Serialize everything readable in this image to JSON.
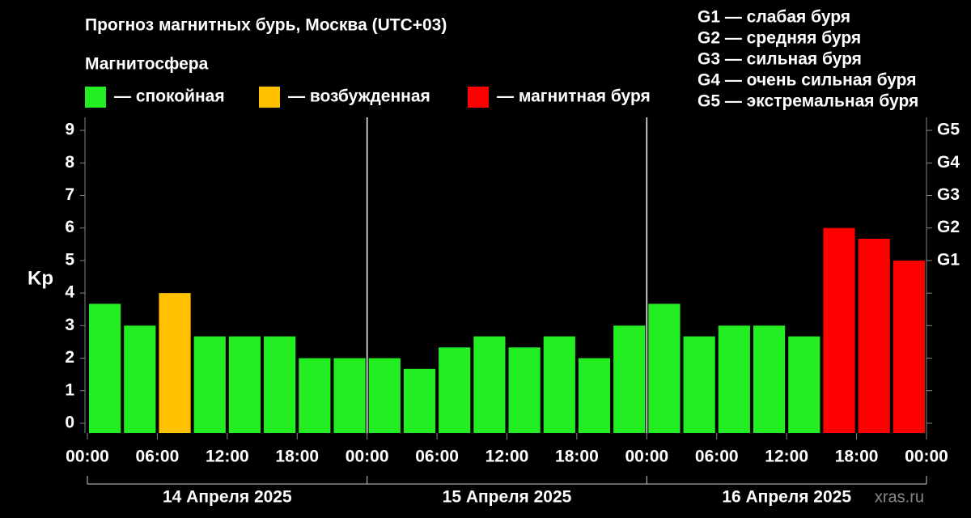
{
  "chart_data": {
    "type": "bar",
    "title": "Прогноз магнитных бурь, Москва (UTC+03)",
    "legend_title": "Магнитосфера",
    "legend": [
      {
        "label": "— спокойная",
        "color": "#22ee22"
      },
      {
        "label": "— возбужденная",
        "color": "#ffc000"
      },
      {
        "label": "— магнитная буря",
        "color": "#ff0000"
      }
    ],
    "storm_scale": [
      "G1 — слабая буря",
      "G2 — средняя буря",
      "G3 — сильная буря",
      "G4 — очень сильная буря",
      "G5 — экстремальная буря"
    ],
    "ylabel": "Kp",
    "values": [
      3.67,
      3,
      4,
      2.67,
      2.67,
      2.67,
      2,
      2,
      2,
      1.67,
      2.33,
      2.67,
      2.33,
      2.67,
      2,
      3,
      3.67,
      2.67,
      3,
      3,
      2.67,
      6,
      5.67,
      5
    ],
    "colors": [
      "#22ee22",
      "#22ee22",
      "#ffc000",
      "#22ee22",
      "#22ee22",
      "#22ee22",
      "#22ee22",
      "#22ee22",
      "#22ee22",
      "#22ee22",
      "#22ee22",
      "#22ee22",
      "#22ee22",
      "#22ee22",
      "#22ee22",
      "#22ee22",
      "#22ee22",
      "#22ee22",
      "#22ee22",
      "#22ee22",
      "#22ee22",
      "#ff0000",
      "#ff0000",
      "#ff0000"
    ],
    "ylim": [
      -0.3,
      9.4
    ],
    "yticks": [
      0,
      1,
      2,
      3,
      4,
      5,
      6,
      7,
      8,
      9
    ],
    "y2lim": [
      -0.3,
      9.4
    ],
    "y2ticks": [
      {
        "value": 5,
        "label": "G1"
      },
      {
        "value": 6,
        "label": "G2"
      },
      {
        "value": 7,
        "label": "G3"
      },
      {
        "value": 8,
        "label": "G4"
      },
      {
        "value": 9,
        "label": "G5"
      }
    ],
    "xlim": [
      0,
      72
    ],
    "xticks": [
      {
        "value": 0,
        "label": "00:00"
      },
      {
        "value": 6,
        "label": "06:00"
      },
      {
        "value": 12,
        "label": "12:00"
      },
      {
        "value": 18,
        "label": "18:00"
      },
      {
        "value": 24,
        "label": "00:00"
      },
      {
        "value": 30,
        "label": "06:00"
      },
      {
        "value": 36,
        "label": "12:00"
      },
      {
        "value": 42,
        "label": "18:00"
      },
      {
        "value": 48,
        "label": "00:00"
      },
      {
        "value": 54,
        "label": "06:00"
      },
      {
        "value": 60,
        "label": "12:00"
      },
      {
        "value": 66,
        "label": "18:00"
      },
      {
        "value": 72,
        "label": "00:00"
      }
    ],
    "days": [
      "14 Апреля 2025",
      "15 Апреля 2025",
      "16 Апреля 2025"
    ],
    "watermark": "xras.ru"
  }
}
